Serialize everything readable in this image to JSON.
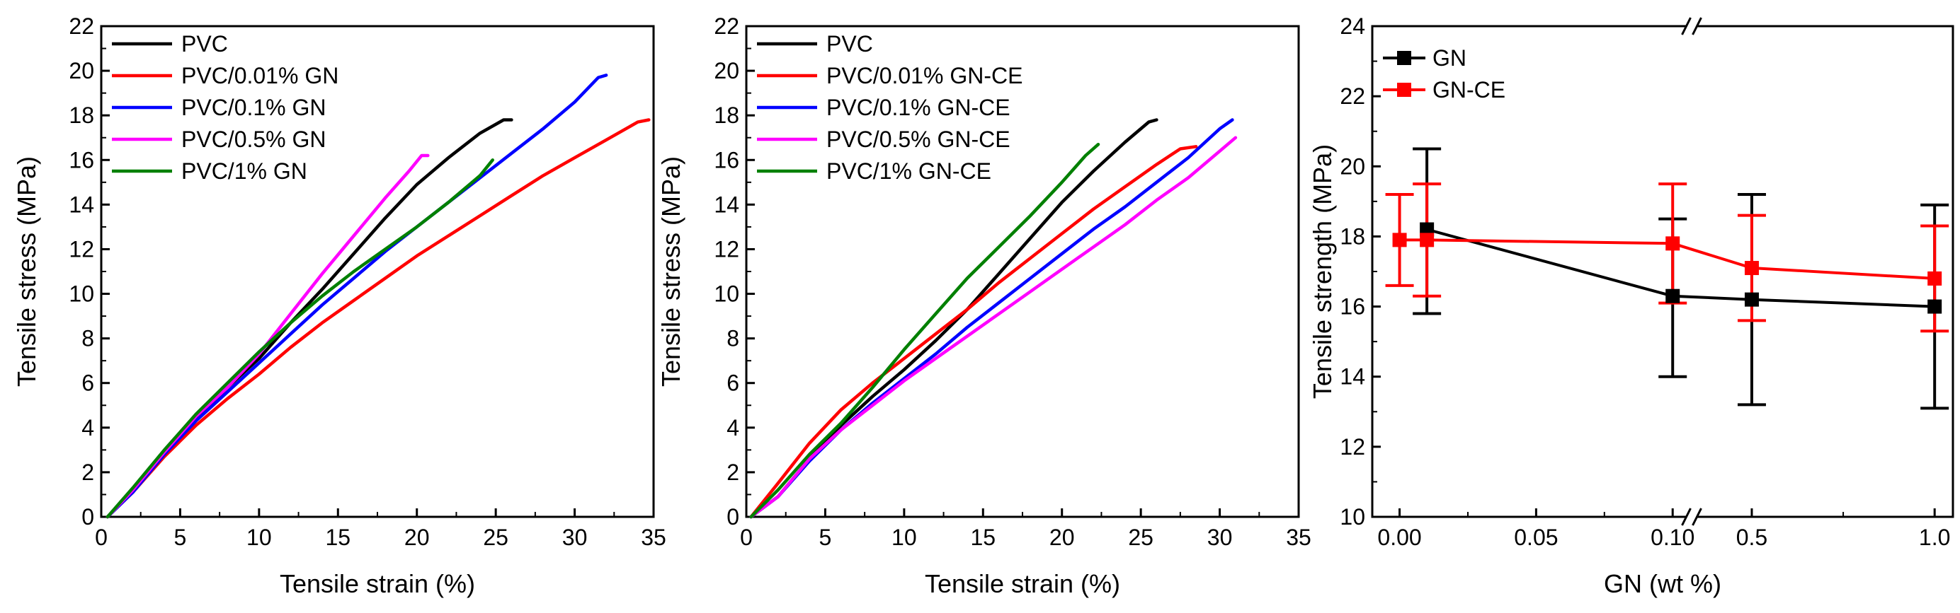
{
  "chart_data": [
    {
      "type": "line",
      "xlabel": "Tensile  strain (%)",
      "ylabel": "Tensile stress (MPa)",
      "xlim": [
        0,
        35
      ],
      "ylim": [
        0,
        22
      ],
      "xticks": [
        "0",
        "5",
        "10",
        "15",
        "20",
        "25",
        "30",
        "35"
      ],
      "yticks": [
        "0",
        "2",
        "4",
        "6",
        "8",
        "10",
        "12",
        "14",
        "16",
        "18",
        "20",
        "22"
      ],
      "legend_position": "top-left",
      "series": [
        {
          "name": "PVC",
          "color": "#000000",
          "x": [
            0.4,
            2,
            4,
            6,
            8,
            10,
            12,
            14,
            16,
            18,
            20,
            22,
            24,
            25.5,
            26
          ],
          "y": [
            0,
            1.2,
            2.9,
            4.4,
            5.8,
            7.1,
            8.7,
            10.2,
            11.8,
            13.4,
            14.9,
            16.1,
            17.2,
            17.8,
            17.8
          ]
        },
        {
          "name": "PVC/0.01% GN",
          "color": "#ff0000",
          "x": [
            0.4,
            2,
            4,
            6,
            8,
            10,
            12,
            14,
            16,
            18,
            20,
            22,
            24,
            26,
            28,
            30,
            32,
            34,
            34.7
          ],
          "y": [
            0,
            1.1,
            2.7,
            4.1,
            5.3,
            6.4,
            7.6,
            8.7,
            9.7,
            10.7,
            11.7,
            12.6,
            13.5,
            14.4,
            15.3,
            16.1,
            16.9,
            17.7,
            17.8
          ]
        },
        {
          "name": "PVC/0.1% GN",
          "color": "#0000ff",
          "x": [
            0.4,
            2,
            4,
            6,
            8,
            10,
            12,
            14,
            16,
            18,
            20,
            22,
            24,
            26,
            28,
            30,
            31.5,
            32
          ],
          "y": [
            0,
            1.1,
            2.8,
            4.3,
            5.6,
            6.9,
            8.2,
            9.5,
            10.7,
            11.9,
            13.0,
            14.1,
            15.2,
            16.3,
            17.4,
            18.6,
            19.7,
            19.8
          ]
        },
        {
          "name": "PVC/0.5% GN",
          "color": "#ff00ff",
          "x": [
            0.4,
            2,
            4,
            6,
            8,
            10,
            12,
            14,
            16,
            18,
            19.5,
            20.3,
            20.7
          ],
          "y": [
            0,
            1.2,
            2.9,
            4.5,
            5.8,
            7.3,
            9.1,
            10.9,
            12.6,
            14.3,
            15.5,
            16.2,
            16.2
          ]
        },
        {
          "name": "PVC/1% GN",
          "color": "#008000",
          "x": [
            0.4,
            2,
            4,
            6,
            8,
            10,
            12,
            14,
            16,
            18,
            20,
            22,
            24,
            24.8
          ],
          "y": [
            0,
            1.3,
            3.0,
            4.6,
            6.0,
            7.4,
            8.7,
            9.9,
            11.0,
            12.0,
            13.0,
            14.1,
            15.3,
            16.0
          ]
        }
      ]
    },
    {
      "type": "line",
      "xlabel": "Tensile strain (%)",
      "ylabel": "Tensile stress (MPa)",
      "xlim": [
        0,
        35
      ],
      "ylim": [
        0,
        22
      ],
      "xticks": [
        "0",
        "5",
        "10",
        "15",
        "20",
        "25",
        "30",
        "35"
      ],
      "yticks": [
        "0",
        "2",
        "4",
        "6",
        "8",
        "10",
        "12",
        "14",
        "16",
        "18",
        "20",
        "22"
      ],
      "legend_position": "top-left",
      "series": [
        {
          "name": "PVC",
          "color": "#000000",
          "x": [
            0.3,
            2,
            4,
            6,
            8,
            10,
            12,
            14,
            16,
            18,
            20,
            22,
            24,
            25.5,
            26
          ],
          "y": [
            0,
            0.9,
            2.6,
            4.1,
            5.4,
            6.6,
            7.9,
            9.3,
            10.9,
            12.5,
            14.1,
            15.5,
            16.8,
            17.7,
            17.8
          ]
        },
        {
          "name": "PVC/0.01% GN-CE",
          "color": "#ff0000",
          "x": [
            0.3,
            2,
            4,
            6,
            8,
            10,
            12,
            14,
            16,
            18,
            20,
            22,
            24,
            26,
            27.5,
            28.5
          ],
          "y": [
            0,
            1.5,
            3.3,
            4.8,
            6.0,
            7.1,
            8.2,
            9.3,
            10.5,
            11.6,
            12.7,
            13.8,
            14.8,
            15.8,
            16.5,
            16.6
          ]
        },
        {
          "name": "PVC/0.1% GN-CE",
          "color": "#0000ff",
          "x": [
            0.3,
            2,
            4,
            6,
            8,
            10,
            12,
            14,
            16,
            18,
            20,
            22,
            24,
            26,
            28,
            30,
            30.8
          ],
          "y": [
            0,
            0.9,
            2.5,
            3.9,
            5.1,
            6.2,
            7.3,
            8.5,
            9.6,
            10.7,
            11.8,
            12.9,
            13.9,
            15.0,
            16.1,
            17.4,
            17.8
          ]
        },
        {
          "name": "PVC/0.5% GN-CE",
          "color": "#ff00ff",
          "x": [
            0.3,
            2,
            4,
            6,
            8,
            10,
            12,
            14,
            16,
            18,
            20,
            22,
            24,
            26,
            28,
            30,
            31
          ],
          "y": [
            0,
            0.9,
            2.6,
            3.9,
            5.0,
            6.1,
            7.1,
            8.1,
            9.1,
            10.1,
            11.1,
            12.1,
            13.1,
            14.2,
            15.2,
            16.4,
            17.0
          ]
        },
        {
          "name": "PVC/1% GN-CE",
          "color": "#008000",
          "x": [
            0.3,
            2,
            4,
            6,
            8,
            10,
            12,
            14,
            16,
            18,
            20,
            21.5,
            22.3
          ],
          "y": [
            0,
            1.2,
            2.8,
            4.2,
            5.8,
            7.5,
            9.1,
            10.7,
            12.1,
            13.5,
            15.0,
            16.2,
            16.7
          ]
        }
      ]
    },
    {
      "type": "scatter",
      "xlabel": "GN (wt %)",
      "ylabel": "Tensile strength (MPa)",
      "ylim": [
        10,
        24
      ],
      "yticks": [
        "10",
        "12",
        "14",
        "16",
        "18",
        "20",
        "22",
        "24"
      ],
      "x_break": true,
      "x_segment_1": {
        "range": [
          -0.01,
          0.105
        ],
        "ticks": [
          "0.00",
          "0.05",
          "0.10"
        ]
      },
      "x_segment_2": {
        "range": [
          0.35,
          1.05
        ],
        "ticks": [
          "0.5",
          "1.0"
        ]
      },
      "legend_position": "top-left",
      "series": [
        {
          "name": "GN",
          "color": "#000000",
          "marker": "square",
          "x": [
            0.01,
            0.1,
            0.5,
            1.0
          ],
          "y": [
            18.2,
            16.3,
            16.2,
            16.0
          ],
          "err_low": [
            15.8,
            14.0,
            13.2,
            13.1
          ],
          "err_high": [
            20.5,
            18.5,
            19.2,
            18.9
          ]
        },
        {
          "name": "GN-CE",
          "color": "#ff0000",
          "marker": "square",
          "x": [
            0.0,
            0.01,
            0.1,
            0.5,
            1.0
          ],
          "y": [
            17.9,
            17.9,
            17.8,
            17.1,
            16.8
          ],
          "err_low": [
            16.6,
            16.3,
            16.1,
            15.6,
            15.3
          ],
          "err_high": [
            19.2,
            19.5,
            19.5,
            18.6,
            18.3
          ]
        }
      ]
    }
  ]
}
